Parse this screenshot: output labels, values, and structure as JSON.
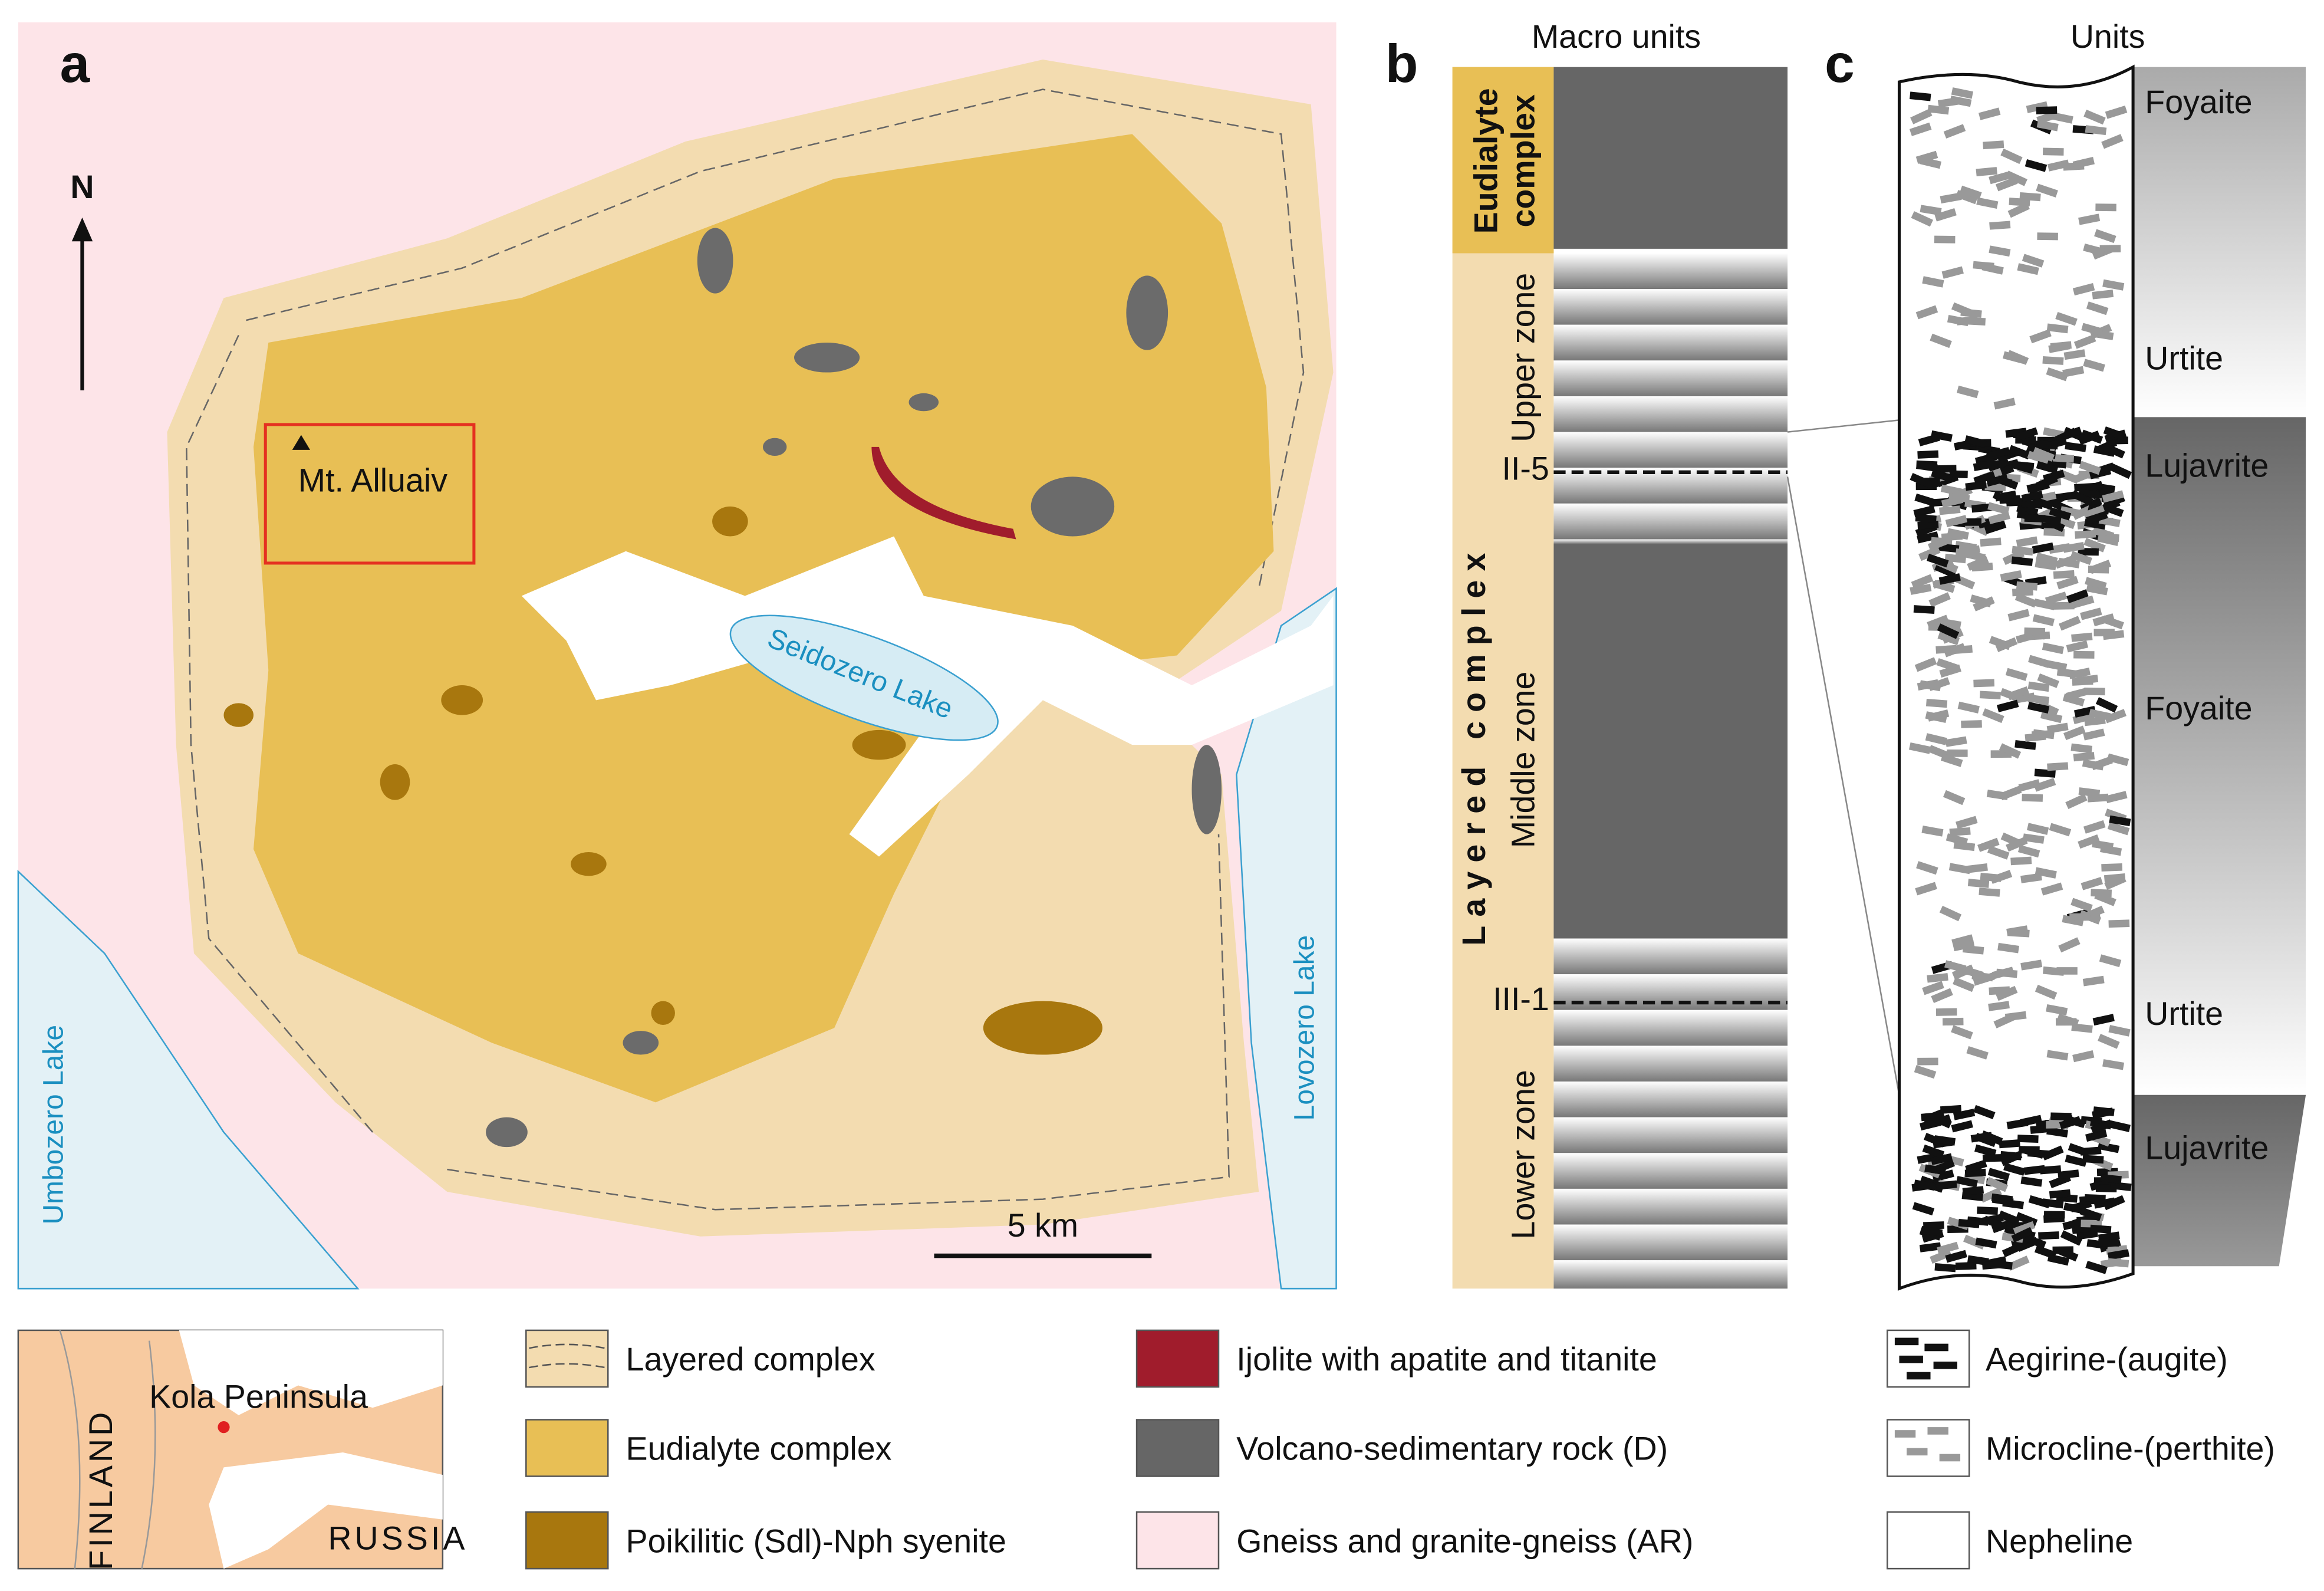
{
  "panel_a": {
    "label": "a",
    "north": "N",
    "place": "Mt. Alluaiv",
    "lakes": [
      "Seidozero Lake",
      "Umbozero Lake",
      "Lovozero Lake"
    ],
    "scale_bar": "5 km"
  },
  "panel_b": {
    "label": "b",
    "title": "Macro units",
    "eudialyte_label": [
      "Eudialyte",
      "complex"
    ],
    "layered_label": "Layered complex",
    "zones": [
      "Upper zone",
      "Middle zone",
      "Lower zone"
    ],
    "boundaries": [
      "II-5",
      "III-1"
    ]
  },
  "panel_c": {
    "label": "c",
    "title": "Units",
    "units": [
      "Foyaite",
      "Urtite",
      "Lujavrite",
      "Foyaite",
      "Urtite",
      "Lujavrite"
    ]
  },
  "inset": {
    "labels": [
      "Kola Peninsula",
      "FINLAND",
      "RUSSIA"
    ]
  },
  "legend": {
    "items": [
      "Layered complex",
      "Eudialyte complex",
      "Poikilitic (Sdl)-Nph syenite",
      "Ijolite with apatite and titanite",
      "Volcano-sedimentary rock (D)",
      "Gneiss and granite-gneiss (AR)"
    ],
    "minerals": [
      "Aegirine-(augite)",
      "Microcline-(perthite)",
      "Nepheline"
    ]
  }
}
